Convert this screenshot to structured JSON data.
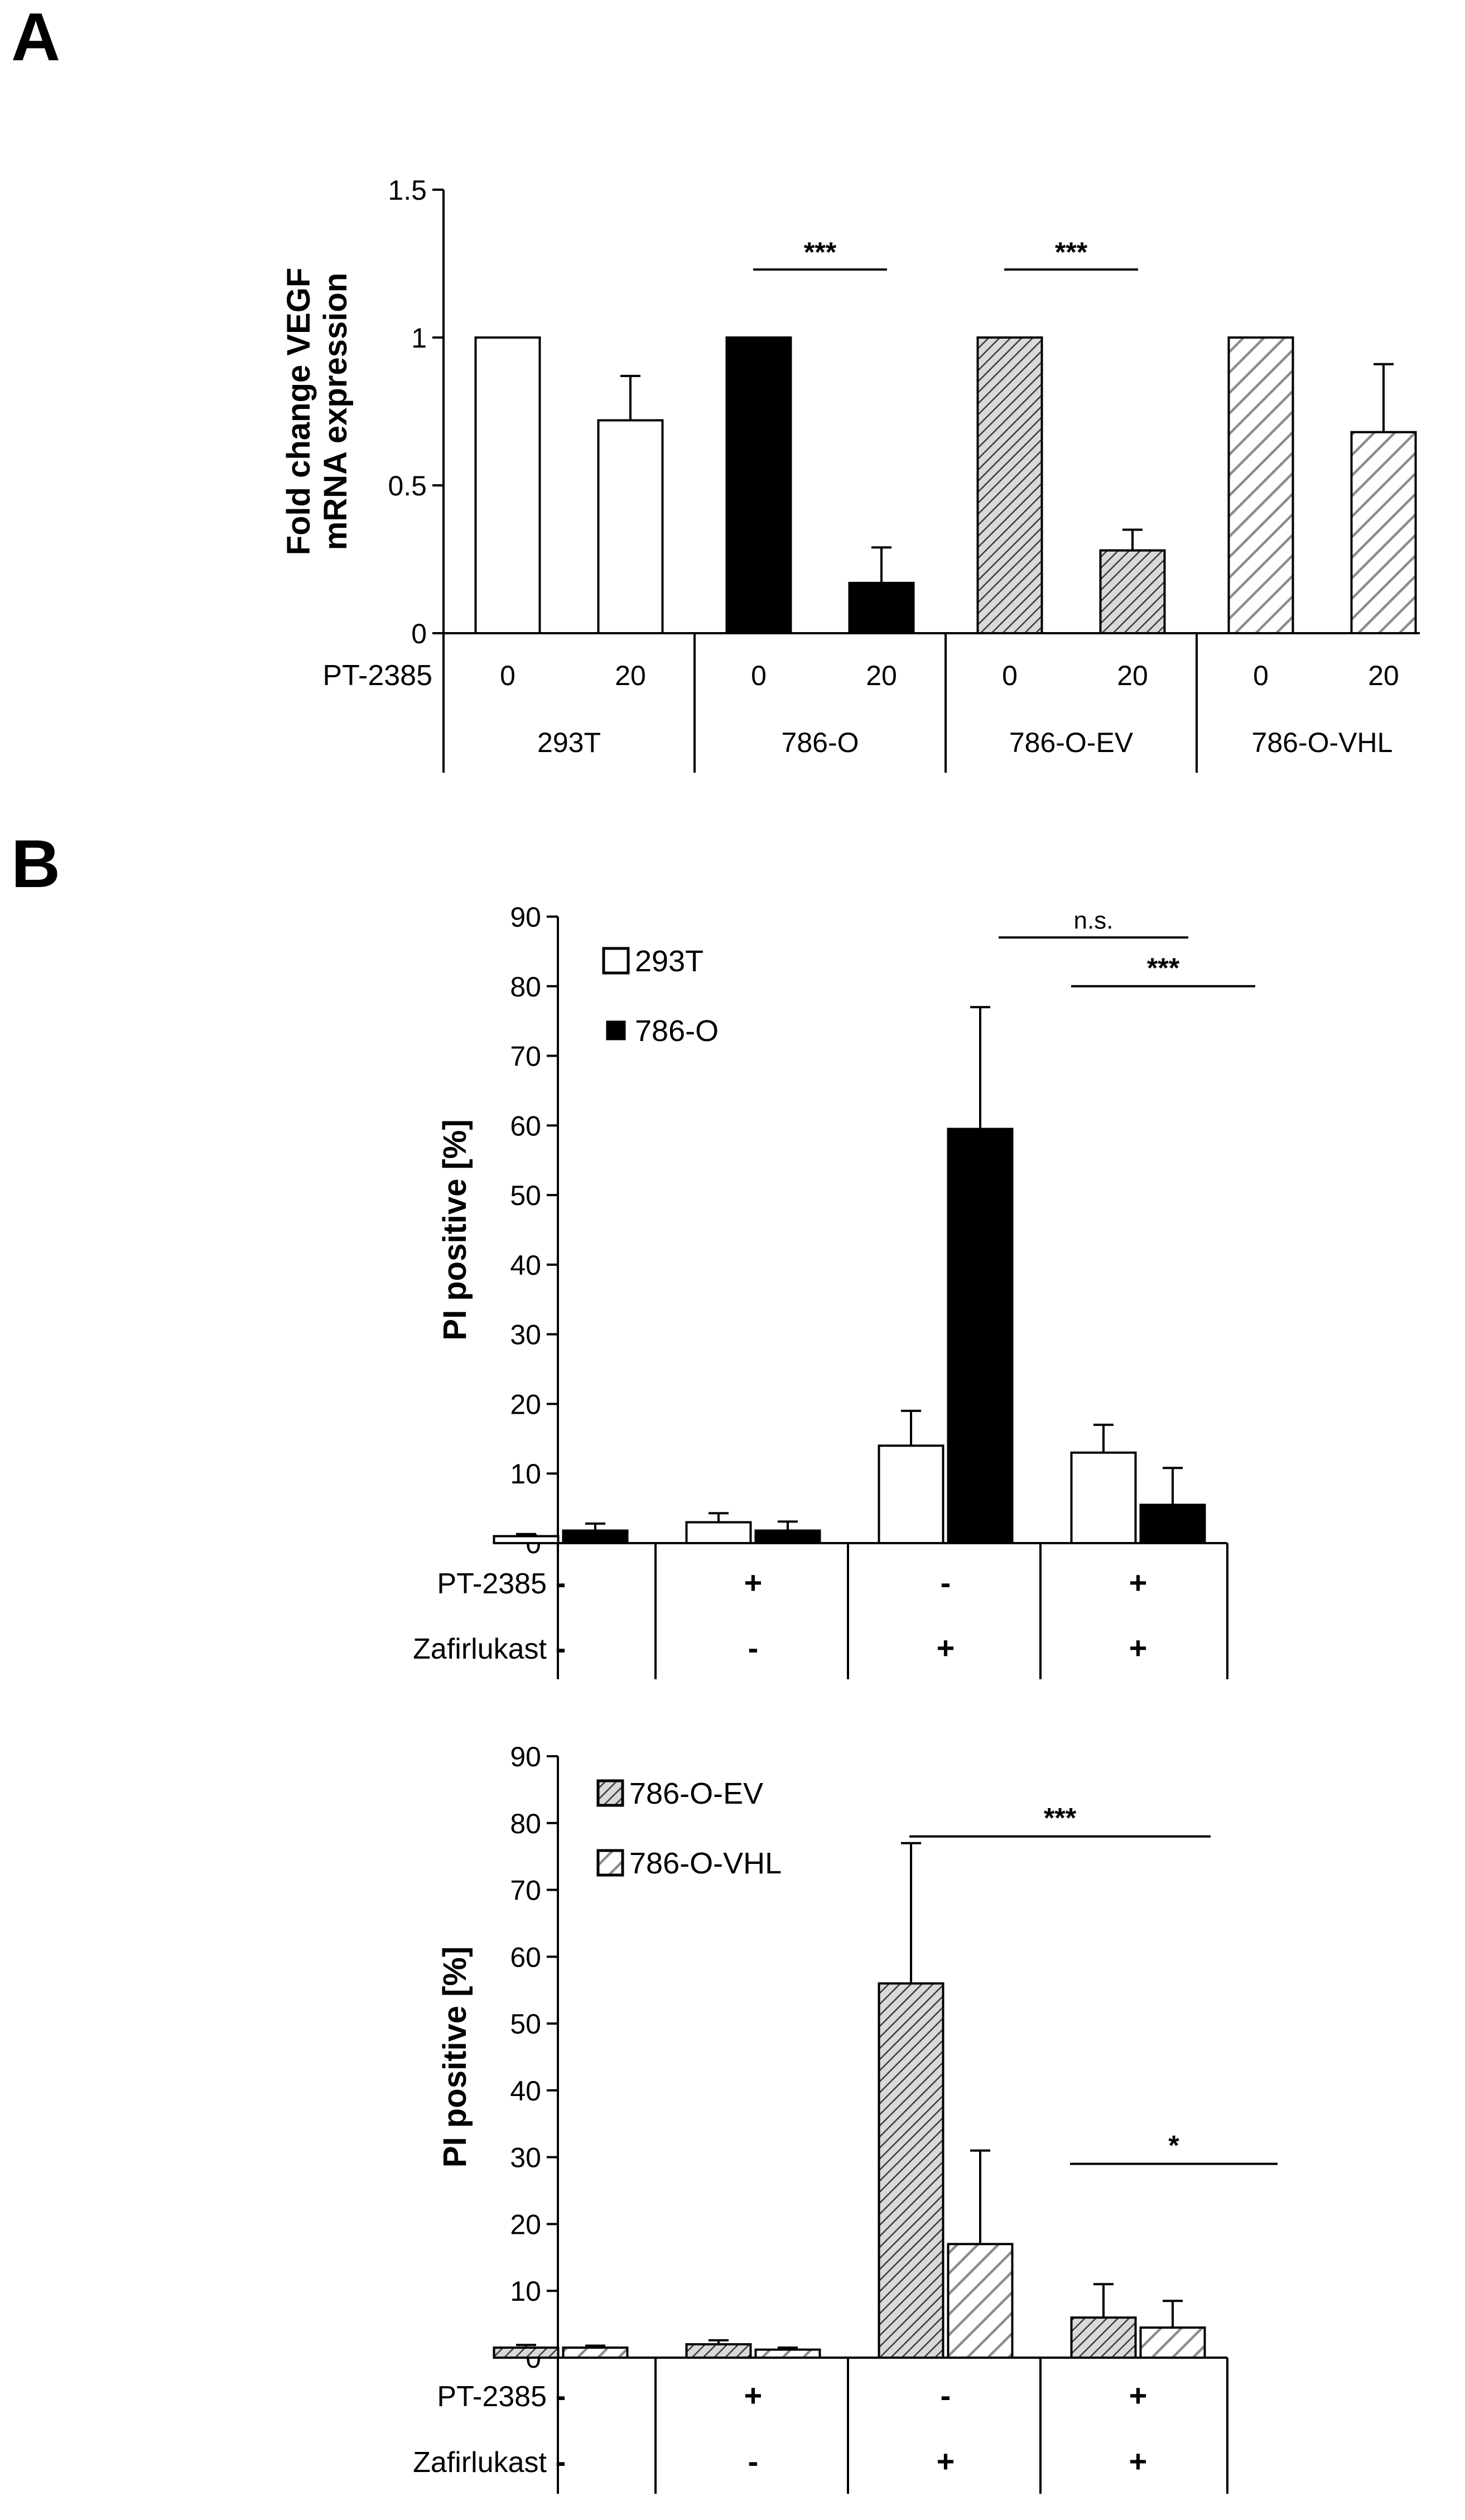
{
  "panel_labels": [
    "A",
    "B"
  ],
  "chart_data": [
    {
      "type": "bar",
      "panel": "A",
      "title": "",
      "ylabel": "Fold change VEGF mRNA expression",
      "ylim": [
        0,
        1.5
      ],
      "yticks": [
        0,
        0.5,
        1,
        1.5
      ],
      "ytick_labels": [
        "0",
        "0.5",
        "1",
        "1.5"
      ],
      "treatment_label": "PT-2385",
      "groups": [
        {
          "name": "293T",
          "fill": "white",
          "doses": [
            "0",
            "20"
          ],
          "values": [
            1.0,
            0.72
          ],
          "errors": [
            0,
            0.15
          ]
        },
        {
          "name": "786-O",
          "fill": "black",
          "doses": [
            "0",
            "20"
          ],
          "values": [
            1.0,
            0.17
          ],
          "errors": [
            0,
            0.12
          ]
        },
        {
          "name": "786-O-EV",
          "fill": "dense-hatch",
          "doses": [
            "0",
            "20"
          ],
          "values": [
            1.0,
            0.28
          ],
          "errors": [
            0,
            0.07
          ]
        },
        {
          "name": "786-O-VHL",
          "fill": "light-hatch",
          "doses": [
            "0",
            "20"
          ],
          "values": [
            1.0,
            0.68
          ],
          "errors": [
            0,
            0.23
          ]
        }
      ],
      "significance": [
        {
          "group": "786-O",
          "label": "***"
        },
        {
          "group": "786-O-EV",
          "label": "***"
        }
      ]
    },
    {
      "type": "bar",
      "panel": "B-top",
      "ylabel": "PI positive [%]",
      "ylim": [
        0,
        90
      ],
      "yticks": [
        0,
        10,
        20,
        30,
        40,
        50,
        60,
        70,
        80,
        90
      ],
      "ytick_labels": [
        "0",
        "10",
        "20",
        "30",
        "40",
        "50",
        "60",
        "70",
        "80",
        "90"
      ],
      "row_labels": [
        "PT-2385",
        "Zafirlukast"
      ],
      "conditions": [
        {
          "pt": "-",
          "zaf": "-"
        },
        {
          "pt": "+",
          "zaf": "-"
        },
        {
          "pt": "-",
          "zaf": "+"
        },
        {
          "pt": "+",
          "zaf": "+"
        }
      ],
      "series": [
        {
          "name": "293T",
          "fill": "white",
          "values": [
            1,
            3,
            14,
            13
          ],
          "errors": [
            0.3,
            1.3,
            5,
            4
          ]
        },
        {
          "name": "786-O",
          "fill": "black",
          "values": [
            1.8,
            1.8,
            59.5,
            5.5
          ],
          "errors": [
            1,
            1.3,
            17.5,
            5.3
          ]
        }
      ],
      "significance": [
        {
          "label": "n.s."
        },
        {
          "label": "***"
        }
      ]
    },
    {
      "type": "bar",
      "panel": "B-bottom",
      "ylabel": "PI positive [%]",
      "ylim": [
        0,
        90
      ],
      "yticks": [
        0,
        10,
        20,
        30,
        40,
        50,
        60,
        70,
        80,
        90
      ],
      "ytick_labels": [
        "0",
        "10",
        "20",
        "30",
        "40",
        "50",
        "60",
        "70",
        "80",
        "90"
      ],
      "row_labels": [
        "PT-2385",
        "Zafirlukast"
      ],
      "conditions": [
        {
          "pt": "-",
          "zaf": "-"
        },
        {
          "pt": "+",
          "zaf": "-"
        },
        {
          "pt": "-",
          "zaf": "+"
        },
        {
          "pt": "+",
          "zaf": "+"
        }
      ],
      "series": [
        {
          "name": "786-O-EV",
          "fill": "dense-hatch",
          "values": [
            1.5,
            2,
            56,
            6
          ],
          "errors": [
            0.4,
            0.6,
            21,
            5
          ]
        },
        {
          "name": "786-O-VHL",
          "fill": "light-hatch",
          "values": [
            1.5,
            1.2,
            17,
            4.5
          ],
          "errors": [
            0.3,
            0.3,
            14,
            4
          ]
        }
      ],
      "significance": [
        {
          "label": "***"
        },
        {
          "label": "*"
        }
      ]
    }
  ]
}
